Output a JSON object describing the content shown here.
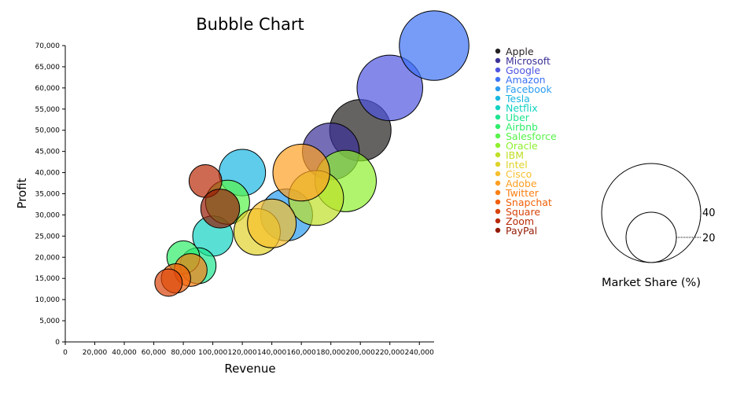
{
  "chart_data": {
    "type": "scatter",
    "title": "Bubble Chart",
    "xlabel": "Revenue",
    "ylabel": "Profit",
    "xlim": [
      0,
      250000
    ],
    "ylim": [
      0,
      70000
    ],
    "x_ticks": [
      0,
      20000,
      40000,
      60000,
      80000,
      100000,
      120000,
      140000,
      160000,
      180000,
      200000,
      220000,
      240000
    ],
    "x_tick_labels": [
      "0",
      "20,000",
      "40,000",
      "60,000",
      "80,000",
      "100,000",
      "120,000",
      "140,000",
      "160,000",
      "180,000",
      "200,000",
      "220,000",
      "240,000"
    ],
    "y_ticks": [
      0,
      5000,
      10000,
      15000,
      20000,
      25000,
      30000,
      35000,
      40000,
      45000,
      50000,
      55000,
      60000,
      65000,
      70000
    ],
    "y_tick_labels": [
      "0",
      "5,000",
      "10,000",
      "15,000",
      "20,000",
      "25,000",
      "30,000",
      "35,000",
      "40,000",
      "45,000",
      "50,000",
      "55,000",
      "60,000",
      "65,000",
      "70,000"
    ],
    "grid": false,
    "legend_position": "right",
    "size_legend": {
      "title": "Market Share (%)",
      "values": [
        40,
        20
      ],
      "labels": [
        "40",
        "20"
      ]
    },
    "series": [
      {
        "name": "Apple",
        "color": "#231f20",
        "x": 200000,
        "y": 50000,
        "size": 35
      },
      {
        "name": "Microsoft",
        "color": "#3b3197",
        "x": 180000,
        "y": 45000,
        "size": 30
      },
      {
        "name": "Google",
        "color": "#4f55e0",
        "x": 220000,
        "y": 60000,
        "size": 40
      },
      {
        "name": "Amazon",
        "color": "#3d72f5",
        "x": 250000,
        "y": 70000,
        "size": 45
      },
      {
        "name": "Facebook",
        "color": "#2a9cf0",
        "x": 150000,
        "y": 30000,
        "size": 25
      },
      {
        "name": "Tesla",
        "color": "#19b6e1",
        "x": 120000,
        "y": 40000,
        "size": 20
      },
      {
        "name": "Netflix",
        "color": "#12d2c2",
        "x": 100000,
        "y": 25000,
        "size": 15
      },
      {
        "name": "Uber",
        "color": "#1ee48f",
        "x": 90000,
        "y": 18000,
        "size": 12
      },
      {
        "name": "Airbnb",
        "color": "#2fed6a",
        "x": 80000,
        "y": 20000,
        "size": 10
      },
      {
        "name": "Salesforce",
        "color": "#58f44a",
        "x": 110000,
        "y": 33000,
        "size": 18
      },
      {
        "name": "Oracle",
        "color": "#8ff02f",
        "x": 190000,
        "y": 38000,
        "size": 35
      },
      {
        "name": "IBM",
        "color": "#bedf27",
        "x": 170000,
        "y": 34000,
        "size": 28
      },
      {
        "name": "Intel",
        "color": "#dfd22b",
        "x": 130000,
        "y": 26000,
        "size": 20
      },
      {
        "name": "Cisco",
        "color": "#f6bf2c",
        "x": 140000,
        "y": 28000,
        "size": 22
      },
      {
        "name": "Adobe",
        "color": "#fe9f22",
        "x": 160000,
        "y": 40000,
        "size": 30
      },
      {
        "name": "Twitter",
        "color": "#fb7f14",
        "x": 85000,
        "y": 17000,
        "size": 10
      },
      {
        "name": "Snapchat",
        "color": "#f16008",
        "x": 75000,
        "y": 15000,
        "size": 8
      },
      {
        "name": "Square",
        "color": "#d84309",
        "x": 70000,
        "y": 14000,
        "size": 7
      },
      {
        "name": "Zoom",
        "color": "#b82b07",
        "x": 95000,
        "y": 38000,
        "size": 10
      },
      {
        "name": "PayPal",
        "color": "#951b05",
        "x": 105000,
        "y": 31500,
        "size": 14
      }
    ]
  }
}
